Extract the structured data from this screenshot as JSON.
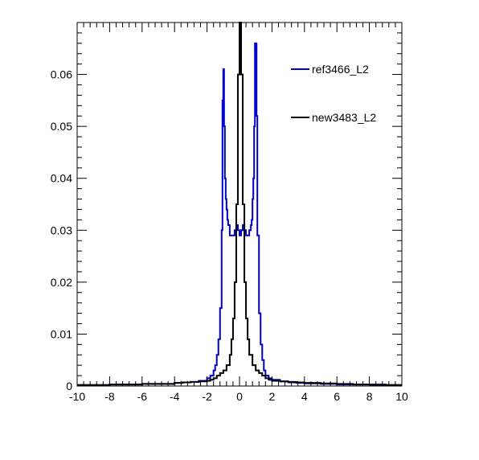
{
  "chart_data": {
    "type": "line",
    "title": "",
    "xlabel": "",
    "ylabel": "",
    "xlim": [
      -10,
      10
    ],
    "ylim": [
      0,
      0.07
    ],
    "x_ticks": [
      -10,
      -8,
      -6,
      -4,
      -2,
      0,
      2,
      4,
      6,
      8,
      10
    ],
    "x_tick_labels": [
      "-10",
      "-8",
      "-6",
      "-4",
      "-2",
      "0",
      "2",
      "4",
      "6",
      "8",
      "10"
    ],
    "y_ticks": [
      0,
      0.01,
      0.02,
      0.03,
      0.04,
      0.05,
      0.06
    ],
    "y_tick_labels": [
      "0",
      "0.01",
      "0.02",
      "0.03",
      "0.04",
      "0.05",
      "0.06"
    ],
    "legend_position": "top-right",
    "grid": false,
    "series": [
      {
        "name": "ref3466_L2",
        "color": "#0000cc",
        "x": [
          -10,
          -9,
          -8,
          -7,
          -6,
          -5,
          -4,
          -3.5,
          -3,
          -2.5,
          -2,
          -1.8,
          -1.6,
          -1.5,
          -1.4,
          -1.3,
          -1.2,
          -1.1,
          -1.05,
          -1.0,
          -0.95,
          -0.9,
          -0.85,
          -0.8,
          -0.75,
          -0.7,
          -0.6,
          -0.5,
          -0.4,
          -0.3,
          -0.2,
          -0.1,
          0,
          0.1,
          0.2,
          0.3,
          0.4,
          0.5,
          0.6,
          0.7,
          0.75,
          0.8,
          0.85,
          0.9,
          0.95,
          1.0,
          1.05,
          1.1,
          1.2,
          1.3,
          1.4,
          1.5,
          1.6,
          1.8,
          2.0,
          2.5,
          3,
          3.5,
          4,
          5,
          6,
          7,
          8,
          9,
          10
        ],
        "values": [
          0.0002,
          0.0002,
          0.0003,
          0.0003,
          0.0004,
          0.0004,
          0.0006,
          0.0007,
          0.0008,
          0.001,
          0.0015,
          0.002,
          0.003,
          0.004,
          0.006,
          0.009,
          0.015,
          0.03,
          0.055,
          0.061,
          0.05,
          0.04,
          0.036,
          0.034,
          0.032,
          0.031,
          0.029,
          0.029,
          0.029,
          0.03,
          0.031,
          0.03,
          0.029,
          0.03,
          0.031,
          0.03,
          0.029,
          0.029,
          0.03,
          0.031,
          0.032,
          0.036,
          0.04,
          0.05,
          0.066,
          0.066,
          0.052,
          0.029,
          0.014,
          0.008,
          0.005,
          0.003,
          0.002,
          0.0015,
          0.0012,
          0.0009,
          0.0007,
          0.0006,
          0.0005,
          0.0004,
          0.0003,
          0.0003,
          0.0002,
          0.0002,
          0.0002
        ]
      },
      {
        "name": "new3483_L2",
        "color": "#000000",
        "x": [
          -10,
          -9,
          -8,
          -7,
          -6,
          -5,
          -4,
          -3.5,
          -3,
          -2.5,
          -2,
          -1.8,
          -1.6,
          -1.4,
          -1.2,
          -1.0,
          -0.8,
          -0.6,
          -0.5,
          -0.4,
          -0.3,
          -0.2,
          -0.1,
          0,
          0.1,
          0.2,
          0.3,
          0.4,
          0.5,
          0.6,
          0.8,
          1.0,
          1.2,
          1.4,
          1.6,
          1.8,
          2.0,
          2.5,
          3,
          3.5,
          4,
          5,
          6,
          7,
          8,
          9,
          10
        ],
        "values": [
          0.0002,
          0.0002,
          0.0003,
          0.0003,
          0.0004,
          0.0004,
          0.0006,
          0.0007,
          0.0008,
          0.0009,
          0.001,
          0.0012,
          0.0015,
          0.002,
          0.0025,
          0.003,
          0.004,
          0.006,
          0.009,
          0.013,
          0.02,
          0.035,
          0.06,
          0.07,
          0.06,
          0.035,
          0.02,
          0.013,
          0.009,
          0.006,
          0.004,
          0.003,
          0.0025,
          0.002,
          0.0015,
          0.0012,
          0.001,
          0.0009,
          0.0008,
          0.0007,
          0.0006,
          0.0005,
          0.0004,
          0.0003,
          0.0003,
          0.0002,
          0.0002
        ]
      }
    ]
  }
}
